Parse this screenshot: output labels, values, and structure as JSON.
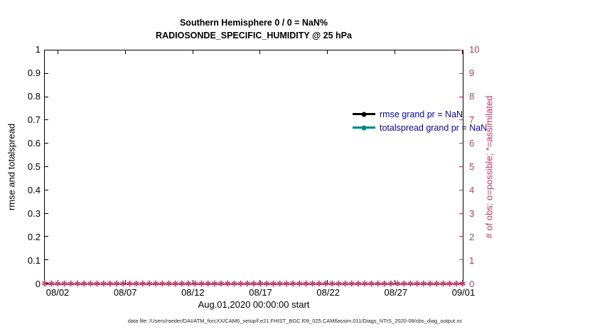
{
  "chart_data": {
    "type": "line",
    "title": "Southern Hemisphere 0 / 0 = NaN%",
    "subtitle": "RADIOSONDE_SPECIFIC_HUMIDITY @ 25 hPa",
    "xlabel": "Aug.01,2020 00:00:00 start",
    "ylabel_left": "rmse and totalspread",
    "ylabel_right": "# of obs: o=possible; *=assimilated",
    "ylim_left": [
      0,
      1
    ],
    "ylim_right": [
      0,
      10
    ],
    "yticks_left": [
      "0",
      "0.1",
      "0.2",
      "0.3",
      "0.4",
      "0.5",
      "0.6",
      "0.7",
      "0.8",
      "0.9",
      "1"
    ],
    "yticks_right": [
      "0",
      "1",
      "2",
      "3",
      "4",
      "5",
      "6",
      "7",
      "8",
      "9",
      "10"
    ],
    "xticks": [
      "08/02",
      "08/07",
      "08/12",
      "08/17",
      "08/22",
      "08/27",
      "09/01"
    ],
    "xtick_day_offsets": [
      1,
      6,
      11,
      16,
      21,
      26,
      31
    ],
    "x_range_days": 31,
    "grid": false,
    "legend_position": "upper-right-inside",
    "legend_text_color": "#0000ee",
    "legend": [
      {
        "label": "rmse grand pr = NaN",
        "color": "#000000"
      },
      {
        "label": "totalspread grand pr = NaN",
        "color": "#008b8b"
      }
    ],
    "series": [
      {
        "name": "rmse",
        "axis": "left",
        "color": "#000000",
        "marker": "o",
        "grand_pr": "NaN",
        "values": []
      },
      {
        "name": "totalspread",
        "axis": "left",
        "color": "#008b8b",
        "marker": "o",
        "grand_pr": "NaN",
        "values": []
      },
      {
        "name": "# of obs possible",
        "axis": "right",
        "color": "#de3163",
        "marker": "o",
        "values": [
          0,
          0,
          0,
          0,
          0,
          0,
          0,
          0,
          0,
          0,
          0,
          0,
          0,
          0,
          0,
          0,
          0,
          0,
          0,
          0,
          0,
          0,
          0,
          0,
          0,
          0,
          0,
          0,
          0,
          0,
          0
        ]
      },
      {
        "name": "# of obs assimilated",
        "axis": "right",
        "color": "#de3163",
        "marker": "*",
        "values": [
          0,
          0,
          0,
          0,
          0,
          0,
          0,
          0,
          0,
          0,
          0,
          0,
          0,
          0,
          0,
          0,
          0,
          0,
          0,
          0,
          0,
          0,
          0,
          0,
          0,
          0,
          0,
          0,
          0,
          0,
          0
        ]
      }
    ],
    "obs_band": {
      "value": 0,
      "color": "#de3163",
      "possible_glyph": "○",
      "assimilated_glyph": "∗"
    },
    "right_axis_color": "#de3163",
    "caption": "data file: /Users/raeder/DAI/ATM_forcXX/CAM6_setup/f.e21.FHIST_BGC.f09_025.CAM6assim.011/Diags_NTrS_2020-08/obs_diag_output.nc"
  }
}
